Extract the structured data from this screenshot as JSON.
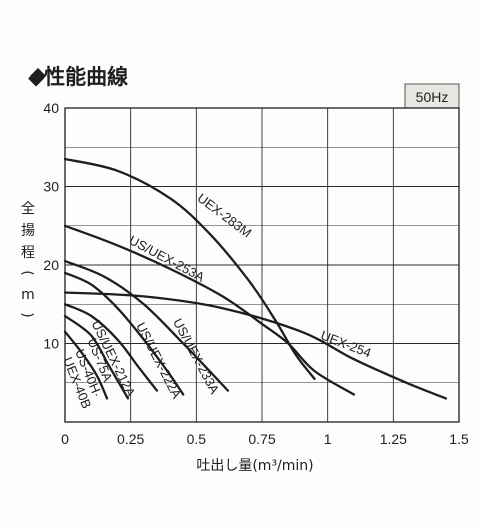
{
  "title": "◆性能曲線",
  "frequency_badge": "50Hz",
  "chart_data": {
    "type": "line",
    "xlabel": "吐出し量(m³/min)",
    "ylabel": "全揚程(m)",
    "xlim": [
      0,
      1.5
    ],
    "ylim": [
      0,
      40
    ],
    "x_ticks": [
      0,
      0.25,
      0.5,
      0.75,
      1,
      1.25,
      1.5
    ],
    "x_tick_labels": [
      "0",
      "0.25",
      "0.5",
      "0.75",
      "1",
      "1.25",
      "1.5"
    ],
    "y_ticks": [
      10,
      20,
      30,
      40
    ],
    "y_tick_labels": [
      "10",
      "20",
      "30",
      "40"
    ],
    "grid": true,
    "series": [
      {
        "name": "UEX-283M",
        "x": [
          0,
          0.2,
          0.4,
          0.55,
          0.7,
          0.8,
          0.88,
          0.95
        ],
        "y": [
          33.5,
          32,
          28.5,
          24,
          18,
          13,
          8.5,
          5.5
        ]
      },
      {
        "name": "US/UEX-253A",
        "x": [
          0,
          0.2,
          0.4,
          0.6,
          0.75,
          0.85,
          0.95,
          1.1
        ],
        "y": [
          25,
          22.5,
          19.5,
          16,
          12.5,
          10,
          6.5,
          3.5
        ]
      },
      {
        "name": "UEX-254",
        "x": [
          0,
          0.3,
          0.6,
          0.9,
          1.1,
          1.3,
          1.45
        ],
        "y": [
          16.5,
          16,
          14.5,
          11.5,
          8,
          5,
          3
        ]
      },
      {
        "name": "US/UEX-233A",
        "x": [
          0,
          0.15,
          0.3,
          0.45,
          0.55,
          0.62
        ],
        "y": [
          20.5,
          18.5,
          15,
          10,
          6.5,
          4
        ]
      },
      {
        "name": "US/UEX-222A",
        "x": [
          0,
          0.1,
          0.2,
          0.3,
          0.4,
          0.45
        ],
        "y": [
          19,
          17.5,
          14.5,
          10.5,
          6,
          3.5
        ]
      },
      {
        "name": "US/UEX-212A",
        "x": [
          0,
          0.1,
          0.2,
          0.28,
          0.35
        ],
        "y": [
          15,
          13.5,
          10.5,
          7,
          4
        ]
      },
      {
        "name": "US-75A",
        "x": [
          0,
          0.1,
          0.17,
          0.24
        ],
        "y": [
          13.5,
          11,
          7,
          3
        ]
      },
      {
        "name": "US-40H·UEX-40B",
        "x": [
          0,
          0.06,
          0.12,
          0.16
        ],
        "y": [
          11.5,
          9,
          6,
          3
        ]
      }
    ]
  }
}
